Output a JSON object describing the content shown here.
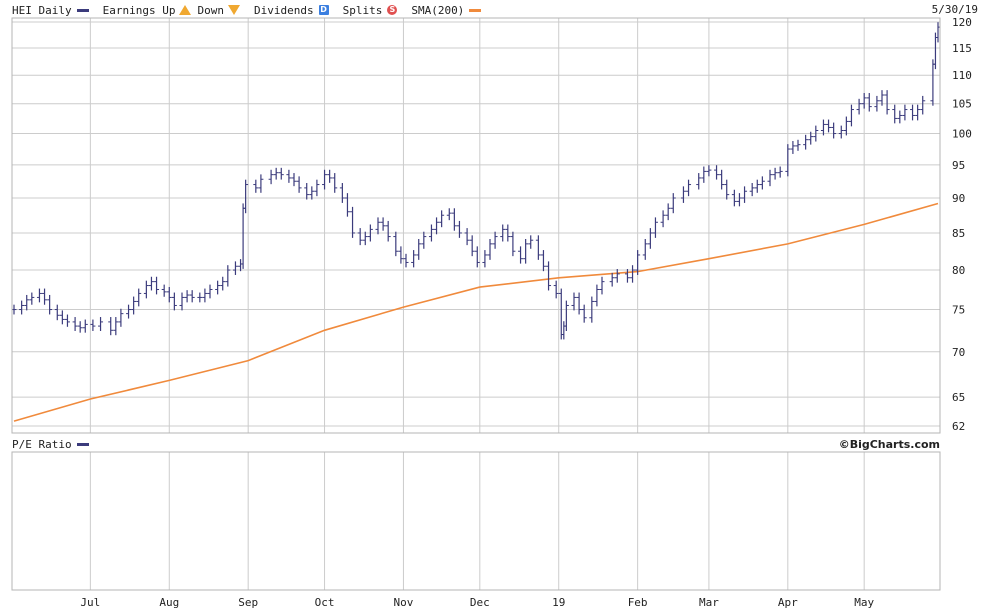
{
  "header": {
    "ticker": "HEI Daily",
    "earnings_label": "Earnings Up",
    "down_label": "Down",
    "dividends_label": "Dividends",
    "dividend_badge": "D",
    "splits_label": "Splits",
    "split_badge": "S",
    "sma_label": "SMA(200)",
    "date": "5/30/19"
  },
  "pe_panel": {
    "label": "P/E Ratio"
  },
  "branding": "©BigCharts.com",
  "colors": {
    "price": "#3b3b7c",
    "sma": "#f08a3c",
    "grid": "#cccccc",
    "border": "#b5b5b5",
    "dividend": "#3b7fe0",
    "split": "#e05050",
    "earnings": "#f0a830"
  },
  "chart_data": {
    "type": "line",
    "title": "HEI Daily",
    "y_scale": "log",
    "ylim": [
      62,
      120
    ],
    "y_ticks": [
      62,
      65,
      70,
      75,
      80,
      85,
      90,
      95,
      100,
      105,
      110,
      115,
      120
    ],
    "x_ticks": [
      "Jul",
      "Aug",
      "Sep",
      "Oct",
      "Nov",
      "Dec",
      "19",
      "Feb",
      "Mar",
      "Apr",
      "May"
    ],
    "date_range": [
      "2018-06-01",
      "2019-05-30"
    ],
    "grid": true,
    "series": [
      {
        "name": "HEI Daily",
        "style": "ohlc-bars",
        "points": [
          [
            "2018-06-01",
            75.0
          ],
          [
            "2018-06-04",
            75.5
          ],
          [
            "2018-06-06",
            76.2
          ],
          [
            "2018-06-08",
            76.5
          ],
          [
            "2018-06-11",
            77.0
          ],
          [
            "2018-06-13",
            76.2
          ],
          [
            "2018-06-15",
            75.0
          ],
          [
            "2018-06-18",
            74.3
          ],
          [
            "2018-06-20",
            73.8
          ],
          [
            "2018-06-22",
            73.5
          ],
          [
            "2018-06-25",
            73.0
          ],
          [
            "2018-06-27",
            72.8
          ],
          [
            "2018-06-29",
            73.2
          ],
          [
            "2018-07-02",
            73.0
          ],
          [
            "2018-07-05",
            73.5
          ],
          [
            "2018-07-09",
            72.5
          ],
          [
            "2018-07-11",
            73.5
          ],
          [
            "2018-07-13",
            74.5
          ],
          [
            "2018-07-16",
            75.0
          ],
          [
            "2018-07-18",
            76.0
          ],
          [
            "2018-07-20",
            77.0
          ],
          [
            "2018-07-23",
            78.0
          ],
          [
            "2018-07-25",
            78.5
          ],
          [
            "2018-07-27",
            77.5
          ],
          [
            "2018-07-30",
            77.2
          ],
          [
            "2018-08-01",
            76.5
          ],
          [
            "2018-08-03",
            75.5
          ],
          [
            "2018-08-06",
            76.5
          ],
          [
            "2018-08-08",
            76.8
          ],
          [
            "2018-08-10",
            76.5
          ],
          [
            "2018-08-13",
            76.5
          ],
          [
            "2018-08-15",
            77.0
          ],
          [
            "2018-08-17",
            77.5
          ],
          [
            "2018-08-20",
            78.0
          ],
          [
            "2018-08-22",
            78.5
          ],
          [
            "2018-08-24",
            80.0
          ],
          [
            "2018-08-27",
            80.5
          ],
          [
            "2018-08-29",
            80.8
          ],
          [
            "2018-08-30",
            88.5
          ],
          [
            "2018-08-31",
            92.0
          ],
          [
            "2018-09-04",
            91.5
          ],
          [
            "2018-09-06",
            92.8
          ],
          [
            "2018-09-10",
            93.5
          ],
          [
            "2018-09-12",
            93.8
          ],
          [
            "2018-09-14",
            93.5
          ],
          [
            "2018-09-17",
            93.0
          ],
          [
            "2018-09-19",
            92.5
          ],
          [
            "2018-09-21",
            91.5
          ],
          [
            "2018-09-24",
            90.5
          ],
          [
            "2018-09-26",
            91.0
          ],
          [
            "2018-09-28",
            92.0
          ],
          [
            "2018-10-01",
            93.5
          ],
          [
            "2018-10-03",
            93.0
          ],
          [
            "2018-10-05",
            91.5
          ],
          [
            "2018-10-08",
            90.0
          ],
          [
            "2018-10-10",
            88.0
          ],
          [
            "2018-10-12",
            85.0
          ],
          [
            "2018-10-15",
            84.0
          ],
          [
            "2018-10-17",
            84.5
          ],
          [
            "2018-10-19",
            85.5
          ],
          [
            "2018-10-22",
            86.5
          ],
          [
            "2018-10-24",
            86.0
          ],
          [
            "2018-10-26",
            84.5
          ],
          [
            "2018-10-29",
            82.5
          ],
          [
            "2018-10-31",
            81.5
          ],
          [
            "2018-11-02",
            81.0
          ],
          [
            "2018-11-05",
            82.0
          ],
          [
            "2018-11-07",
            83.5
          ],
          [
            "2018-11-09",
            84.5
          ],
          [
            "2018-11-12",
            85.5
          ],
          [
            "2018-11-14",
            86.5
          ],
          [
            "2018-11-16",
            87.5
          ],
          [
            "2018-11-19",
            87.8
          ],
          [
            "2018-11-21",
            86.0
          ],
          [
            "2018-11-23",
            85.0
          ],
          [
            "2018-11-26",
            84.0
          ],
          [
            "2018-11-28",
            82.5
          ],
          [
            "2018-11-30",
            81.0
          ],
          [
            "2018-12-03",
            82.0
          ],
          [
            "2018-12-05",
            83.5
          ],
          [
            "2018-12-07",
            84.5
          ],
          [
            "2018-12-10",
            85.5
          ],
          [
            "2018-12-12",
            84.5
          ],
          [
            "2018-12-14",
            82.5
          ],
          [
            "2018-12-17",
            81.5
          ],
          [
            "2018-12-19",
            83.5
          ],
          [
            "2018-12-21",
            84.0
          ],
          [
            "2018-12-24",
            82.0
          ],
          [
            "2018-12-26",
            80.5
          ],
          [
            "2018-12-28",
            78.0
          ],
          [
            "2018-12-31",
            77.0
          ],
          [
            "2019-01-02",
            72.0
          ],
          [
            "2019-01-03",
            73.0
          ],
          [
            "2019-01-04",
            75.5
          ],
          [
            "2019-01-07",
            76.5
          ],
          [
            "2019-01-09",
            75.0
          ],
          [
            "2019-01-11",
            74.0
          ],
          [
            "2019-01-14",
            76.0
          ],
          [
            "2019-01-16",
            77.5
          ],
          [
            "2019-01-18",
            78.5
          ],
          [
            "2019-01-22",
            79.0
          ],
          [
            "2019-01-24",
            79.5
          ],
          [
            "2019-01-28",
            79.0
          ],
          [
            "2019-01-30",
            80.0
          ],
          [
            "2019-02-01",
            82.0
          ],
          [
            "2019-02-04",
            83.5
          ],
          [
            "2019-02-06",
            85.0
          ],
          [
            "2019-02-08",
            86.5
          ],
          [
            "2019-02-11",
            87.5
          ],
          [
            "2019-02-13",
            88.5
          ],
          [
            "2019-02-15",
            90.0
          ],
          [
            "2019-02-19",
            91.0
          ],
          [
            "2019-02-21",
            92.0
          ],
          [
            "2019-02-25",
            93.0
          ],
          [
            "2019-02-27",
            94.0
          ],
          [
            "2019-03-01",
            94.2
          ],
          [
            "2019-03-04",
            93.5
          ],
          [
            "2019-03-06",
            92.0
          ],
          [
            "2019-03-08",
            90.5
          ],
          [
            "2019-03-11",
            89.5
          ],
          [
            "2019-03-13",
            90.0
          ],
          [
            "2019-03-15",
            91.0
          ],
          [
            "2019-03-18",
            91.5
          ],
          [
            "2019-03-20",
            92.0
          ],
          [
            "2019-03-22",
            92.5
          ],
          [
            "2019-03-25",
            93.5
          ],
          [
            "2019-03-27",
            93.8
          ],
          [
            "2019-03-29",
            94.0
          ],
          [
            "2019-04-01",
            97.5
          ],
          [
            "2019-04-03",
            98.0
          ],
          [
            "2019-04-05",
            98.2
          ],
          [
            "2019-04-08",
            99.0
          ],
          [
            "2019-04-10",
            99.5
          ],
          [
            "2019-04-12",
            100.5
          ],
          [
            "2019-04-15",
            101.5
          ],
          [
            "2019-04-17",
            101.0
          ],
          [
            "2019-04-19",
            100.0
          ],
          [
            "2019-04-22",
            100.5
          ],
          [
            "2019-04-24",
            102.0
          ],
          [
            "2019-04-26",
            104.0
          ],
          [
            "2019-04-29",
            105.0
          ],
          [
            "2019-05-01",
            106.0
          ],
          [
            "2019-05-03",
            104.5
          ],
          [
            "2019-05-06",
            105.5
          ],
          [
            "2019-05-08",
            106.5
          ],
          [
            "2019-05-10",
            104.0
          ],
          [
            "2019-05-13",
            102.5
          ],
          [
            "2019-05-15",
            103.0
          ],
          [
            "2019-05-17",
            104.0
          ],
          [
            "2019-05-20",
            103.0
          ],
          [
            "2019-05-22",
            104.0
          ],
          [
            "2019-05-24",
            105.5
          ],
          [
            "2019-05-28",
            112.0
          ],
          [
            "2019-05-29",
            117.0
          ],
          [
            "2019-05-30",
            119.0
          ]
        ]
      },
      {
        "name": "SMA(200)",
        "style": "line",
        "points": [
          [
            "2018-06-01",
            62.5
          ],
          [
            "2018-07-01",
            64.8
          ],
          [
            "2018-08-01",
            66.8
          ],
          [
            "2018-09-01",
            69.0
          ],
          [
            "2018-10-01",
            72.5
          ],
          [
            "2018-11-01",
            75.3
          ],
          [
            "2018-12-01",
            77.8
          ],
          [
            "2019-01-01",
            79.0
          ],
          [
            "2019-02-01",
            79.8
          ],
          [
            "2019-03-01",
            81.5
          ],
          [
            "2019-04-01",
            83.5
          ],
          [
            "2019-05-01",
            86.2
          ],
          [
            "2019-05-30",
            89.2
          ]
        ]
      }
    ]
  }
}
